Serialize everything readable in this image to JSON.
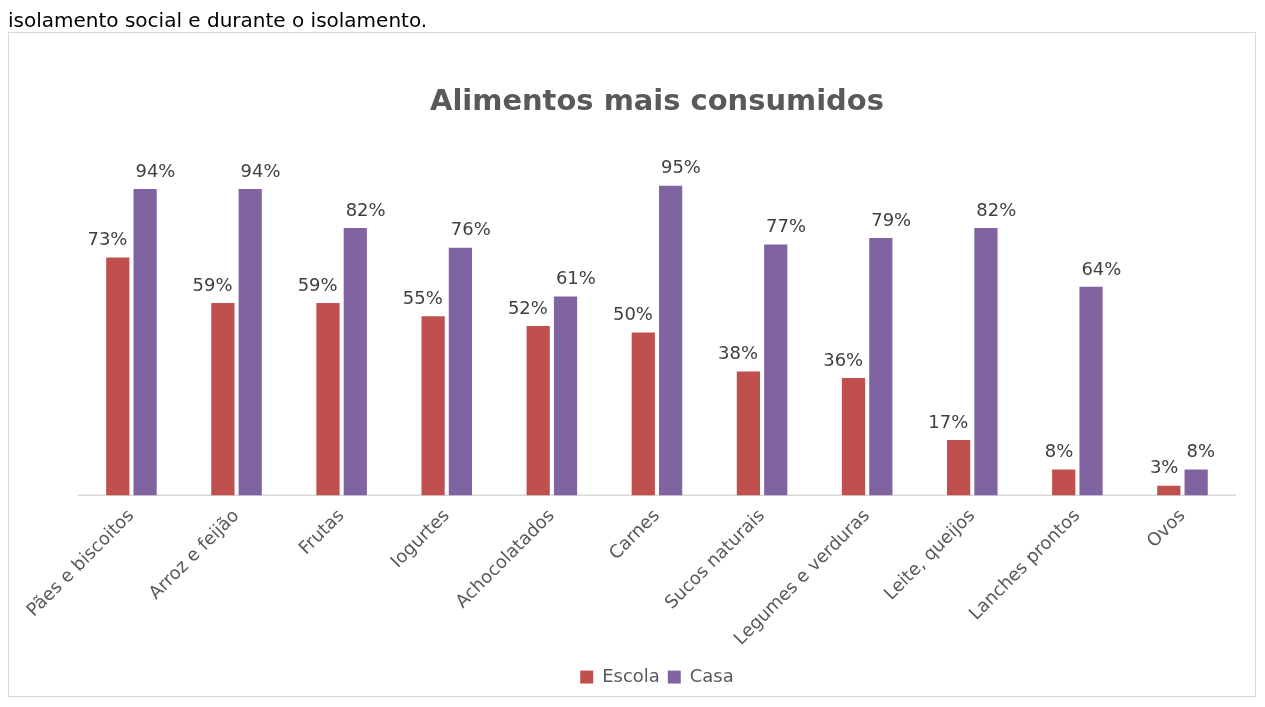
{
  "chart_data": {
    "type": "bar",
    "title": "Alimentos mais consumidos",
    "annotations": [
      "isolamento social e durante o isolamento."
    ],
    "categories": [
      "Pães e biscoitos",
      "Arroz e feijão",
      "Frutas",
      "Iogurtes",
      "Achocolatados",
      "Carnes",
      "Sucos naturais",
      "Legumes e verduras",
      "Leite, queijos",
      "Lanches prontos",
      "Ovos"
    ],
    "series": [
      {
        "name": "Escola",
        "color": "#c0504d",
        "values": [
          73,
          59,
          59,
          55,
          52,
          50,
          38,
          36,
          17,
          8,
          3
        ],
        "value_labels": [
          "73%",
          "59%",
          "59%",
          "55%",
          "52%",
          "50%",
          "38%",
          "36%",
          "17%",
          "8%",
          "3%"
        ]
      },
      {
        "name": "Casa",
        "color": "#8064a2",
        "values": [
          94,
          94,
          82,
          76,
          61,
          95,
          77,
          79,
          82,
          64,
          8
        ],
        "value_labels": [
          "94%",
          "94%",
          "82%",
          "76%",
          "61%",
          "95%",
          "77%",
          "79%",
          "82%",
          "64%",
          "8%"
        ]
      }
    ],
    "tick_labels": "x",
    "grid": false,
    "legend": "bottom"
  }
}
